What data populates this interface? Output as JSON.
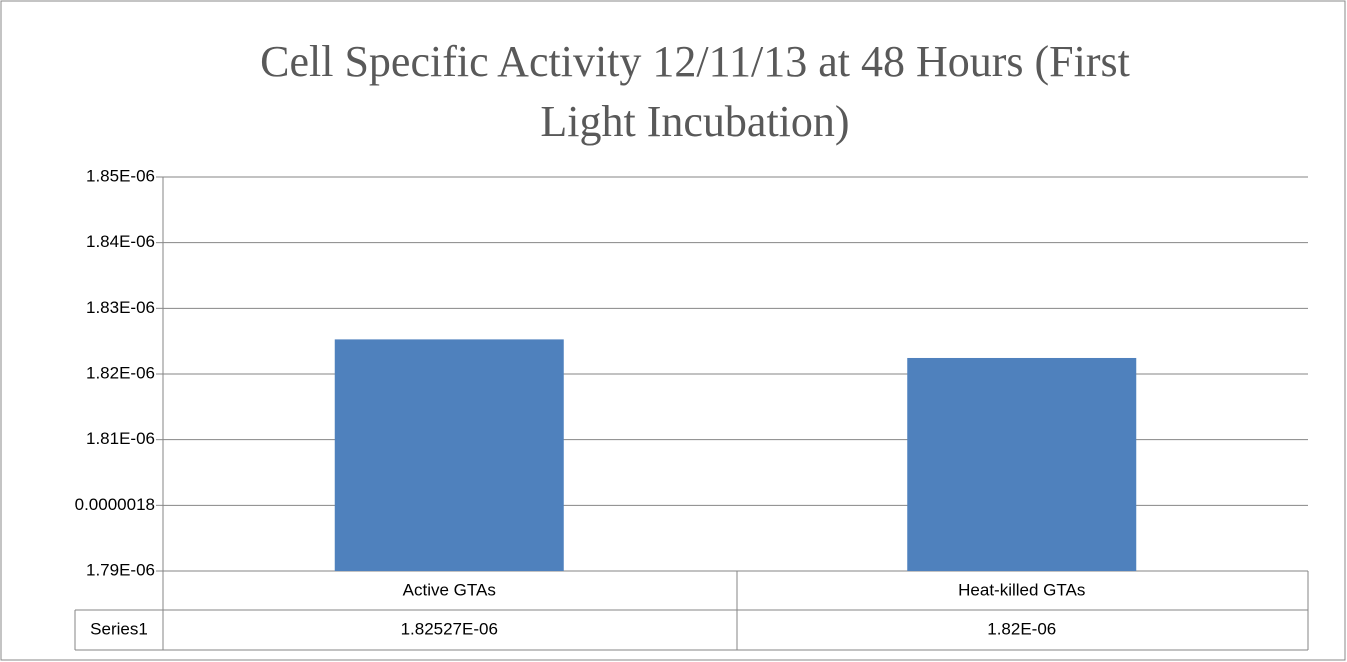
{
  "chart_data": {
    "type": "bar",
    "title": [
      "Cell Specific Activity 12/11/13 at 48 Hours (First",
      "Light Incubation)"
    ],
    "categories": [
      "Active GTAs",
      "Heat-killed GTAs"
    ],
    "series": [
      {
        "name": "Series1",
        "color": "#4f81bd",
        "values": [
          1.82527e-06,
          1.82244e-06
        ],
        "value_labels": [
          "1.82527E-06",
          "1.82E-06"
        ]
      }
    ],
    "ylim": [
      1.79e-06,
      1.85e-06
    ],
    "yticks": [
      {
        "value": 1.79e-06,
        "label": "1.79E-06"
      },
      {
        "value": 1.8e-06,
        "label": "0.0000018"
      },
      {
        "value": 1.81e-06,
        "label": "1.81E-06"
      },
      {
        "value": 1.82e-06,
        "label": "1.82E-06"
      },
      {
        "value": 1.83e-06,
        "label": "1.83E-06"
      },
      {
        "value": 1.84e-06,
        "label": "1.84E-06"
      },
      {
        "value": 1.85e-06,
        "label": "1.85E-06"
      }
    ],
    "grid": true
  }
}
